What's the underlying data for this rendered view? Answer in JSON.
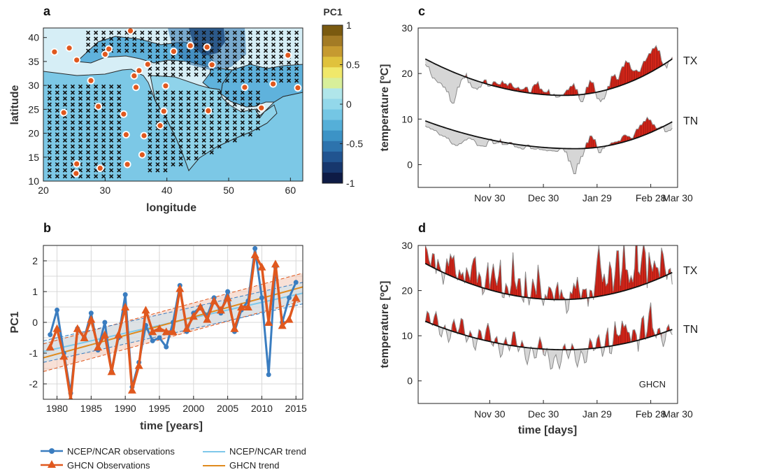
{
  "chart_data": [
    {
      "panel": "a",
      "type": "heatmap",
      "xlabel": "longitude",
      "ylabel": "latitude",
      "xlim": [
        20,
        62
      ],
      "ylim": [
        10,
        42
      ],
      "xticks": [
        "20",
        "30",
        "40",
        "50",
        "60"
      ],
      "yticks": [
        "10",
        "15",
        "20",
        "25",
        "30",
        "35",
        "40"
      ],
      "colorbar": {
        "title": "PC1",
        "range": [
          -1,
          1
        ],
        "ticks": [
          "1",
          "0.5",
          "0",
          "-0.5",
          "-1"
        ],
        "colors_top_to_bottom": [
          "#7a5a10",
          "#a37b25",
          "#c69a30",
          "#e0c23c",
          "#f0e86a",
          "#d8ef9a",
          "#b0e6ea",
          "#93d8ea",
          "#74c6e4",
          "#55afd8",
          "#3c93c6",
          "#2d73ad",
          "#215490",
          "#17376d",
          "#0e1b45"
        ]
      },
      "stations": [
        [
          21.8,
          37
        ],
        [
          24.2,
          37.8
        ],
        [
          25.4,
          35.3
        ],
        [
          30.0,
          36.5
        ],
        [
          30.6,
          37.6
        ],
        [
          34.1,
          41.4
        ],
        [
          34.7,
          32
        ],
        [
          35.5,
          33.1
        ],
        [
          35.0,
          29.6
        ],
        [
          36.9,
          34.4
        ],
        [
          41.1,
          37.1
        ],
        [
          43.8,
          38.3
        ],
        [
          46.5,
          38.0
        ],
        [
          47.3,
          34.3
        ],
        [
          27.7,
          31.0
        ],
        [
          23.3,
          24.3
        ],
        [
          28.9,
          25.6
        ],
        [
          33.0,
          24.0
        ],
        [
          39.8,
          29.9
        ],
        [
          39.5,
          24.6
        ],
        [
          38.9,
          21.6
        ],
        [
          33.4,
          19.7
        ],
        [
          36.3,
          19.5
        ],
        [
          36.0,
          15.5
        ],
        [
          33.6,
          13.5
        ],
        [
          29.2,
          12.7
        ],
        [
          25.4,
          13.6
        ],
        [
          25.3,
          11.6
        ],
        [
          46.7,
          24.7
        ],
        [
          52.6,
          29.6
        ],
        [
          57.2,
          30.3
        ],
        [
          55.3,
          25.3
        ],
        [
          59.6,
          36.3
        ],
        [
          61.2,
          29.5
        ]
      ]
    },
    {
      "panel": "b",
      "type": "line",
      "xlabel": "time [years]",
      "ylabel": "PC1",
      "xlim": [
        1978,
        2016
      ],
      "ylim": [
        -2.5,
        2.5
      ],
      "xticks": [
        "1980",
        "1985",
        "1990",
        "1995",
        "2000",
        "2005",
        "2010",
        "2015"
      ],
      "yticks": [
        "-2",
        "-1",
        "0",
        "1",
        "2"
      ],
      "x": [
        1979,
        1980,
        1981,
        1982,
        1983,
        1984,
        1985,
        1986,
        1987,
        1988,
        1989,
        1990,
        1991,
        1992,
        1993,
        1994,
        1995,
        1996,
        1997,
        1998,
        1999,
        2000,
        2001,
        2002,
        2003,
        2004,
        2005,
        2006,
        2007,
        2008,
        2009,
        2010,
        2011,
        2012,
        2013,
        2014,
        2015
      ],
      "series": [
        {
          "name": "NCEP/NCAR observations",
          "color": "#3a7dc0",
          "values": [
            -0.4,
            0.4,
            -1.0,
            -2.3,
            -0.2,
            -0.5,
            0.3,
            -0.9,
            0.0,
            -1.6,
            -0.5,
            0.9,
            -2.1,
            -1.3,
            -0.1,
            -0.6,
            -0.5,
            -0.8,
            0.0,
            1.2,
            -0.3,
            0.3,
            0.5,
            0.2,
            0.8,
            0.3,
            1.0,
            -0.3,
            0.4,
            0.7,
            2.4,
            0.8,
            -1.7,
            1.8,
            0.0,
            0.8,
            1.3
          ]
        },
        {
          "name": "GHCN Observations",
          "color": "#e0581e",
          "values": [
            -0.8,
            -0.2,
            -1.1,
            -2.5,
            -0.2,
            -0.5,
            0.1,
            -0.8,
            -0.4,
            -1.6,
            -0.4,
            0.5,
            -2.2,
            -1.4,
            0.4,
            -0.3,
            -0.2,
            -0.3,
            -0.3,
            1.1,
            -0.2,
            0.2,
            0.5,
            0.1,
            0.7,
            0.4,
            0.8,
            -0.2,
            0.5,
            0.5,
            2.2,
            1.8,
            0.0,
            1.9,
            -0.1,
            0.1,
            0.8
          ]
        }
      ],
      "trends": [
        {
          "name": "NCEP/NCAR trend",
          "color": "#7ec8ea",
          "y_start": -0.95,
          "y_end": 0.95
        },
        {
          "name": "GHCN trend",
          "color": "#e08a1e",
          "y_start": -1.15,
          "y_end": 1.15
        }
      ],
      "legend": [
        {
          "label": "NCEP/NCAR observations"
        },
        {
          "label": "GHCN Observations"
        },
        {
          "label": "NCEP/NCAR trend"
        },
        {
          "label": "GHCN trend"
        }
      ]
    },
    {
      "panel": "c",
      "type": "area",
      "xlabel": "",
      "ylabel": "temperature [ºC]",
      "ylim": [
        -5,
        30
      ],
      "xlim_days": [
        0,
        145
      ],
      "xticks": [
        "Nov 30",
        "Dec 30",
        "Jan 29",
        "Feb 28",
        "Mar 30"
      ],
      "xtick_days": [
        40,
        70,
        100,
        130,
        160
      ],
      "yticks": [
        "0",
        "10",
        "20",
        "30"
      ],
      "series_labels": [
        "TX",
        "TN"
      ],
      "tx_climatology": {
        "start": 23.2,
        "min": 15.2,
        "min_day": 82,
        "end": 23.2
      },
      "tn_climatology": {
        "start": 9.6,
        "min": 3.5,
        "min_day": 88,
        "end": 9.4
      },
      "tx_obs": [
        22,
        21.5,
        20,
        19,
        18.5,
        18,
        17.8,
        17,
        16,
        14,
        13.5,
        15,
        17,
        18.5,
        19,
        20,
        18,
        17,
        16.8,
        16.5,
        17,
        18,
        18.6,
        17.2,
        17.4,
        18.2,
        17.8,
        17.6,
        18.4,
        17.8,
        17.3,
        17.9,
        17.1,
        16.8,
        17,
        16.5,
        16.6,
        17,
        15.8,
        17.1,
        17.6,
        18.2,
        16.6,
        16,
        15.9,
        16.5,
        15.2,
        15.5,
        14.8,
        14.9,
        15.3,
        15.8,
        16.4,
        17.2,
        17.8,
        16.5,
        14.5,
        13.8,
        15,
        17,
        18.5,
        18,
        16,
        14.5,
        13.8,
        14.4,
        15.5,
        17.2,
        19.4,
        19.8,
        18.7,
        20.4,
        21.5,
        22.8,
        22.4,
        21,
        20.6,
        20.8,
        20.4,
        21.6,
        22.7,
        23.5,
        24.4,
        25.5,
        26.1,
        25,
        22.8,
        21.9,
        21.2,
        22.8,
        23.6
      ],
      "tn_obs": [
        8.5,
        8.2,
        7.8,
        7.5,
        7,
        6.5,
        6.2,
        5.8,
        5,
        4.5,
        4.2,
        4.6,
        5,
        5.4,
        5.8,
        5.5,
        5,
        4.2,
        4.1,
        4,
        5,
        5.6,
        4.6,
        4.8,
        5.6,
        4.4,
        4.4,
        4.9,
        4.6,
        3.9,
        3.7,
        3.4,
        3.9,
        4.3,
        3.5,
        3.4,
        3.6,
        3.3,
        3.2,
        3,
        3.1,
        3,
        2.9,
        3.4,
        3.5,
        2.8,
        0.8,
        -0.6,
        -2,
        0.2,
        1.8,
        3.2,
        4.8,
        6.3,
        5.5,
        3.8,
        2.6,
        3.6,
        4.2,
        4.4,
        4.8,
        5,
        5.2,
        6.1,
        6.5,
        6.2,
        5.8,
        6.8,
        7.8,
        8.7,
        9.5,
        10.4,
        9.8,
        8.8,
        8,
        8.2,
        8.4,
        7.2,
        7.5,
        8
      ],
      "annotation": ""
    },
    {
      "panel": "d",
      "type": "area",
      "xlabel": "time [days]",
      "ylabel": "temperature [ºC]",
      "ylim": [
        -5,
        30
      ],
      "xlim_days": [
        0,
        145
      ],
      "xticks": [
        "Nov 30",
        "Dec 30",
        "Jan 29",
        "Feb 28",
        "Mar 30"
      ],
      "xtick_days": [
        40,
        70,
        100,
        130,
        160
      ],
      "yticks": [
        "0",
        "10",
        "20",
        "30"
      ],
      "series_labels": [
        "TX",
        "TN"
      ],
      "tx_climatology": {
        "start": 26.0,
        "min": 18.0,
        "min_day": 79,
        "end": 24.0
      },
      "tn_climatology": {
        "start": 13.2,
        "min": 6.9,
        "min_day": 82,
        "end": 11.4
      },
      "annotation": "GHCN"
    }
  ],
  "colors": {
    "anomaly_fill": "#d9281a",
    "below_fill": "#d6d6d6",
    "obs_line": "#8a8a8a",
    "clim_line": "#111111",
    "station_dot": "#e0581e",
    "land": "#cfeff5",
    "sea": "#d6eef6"
  }
}
